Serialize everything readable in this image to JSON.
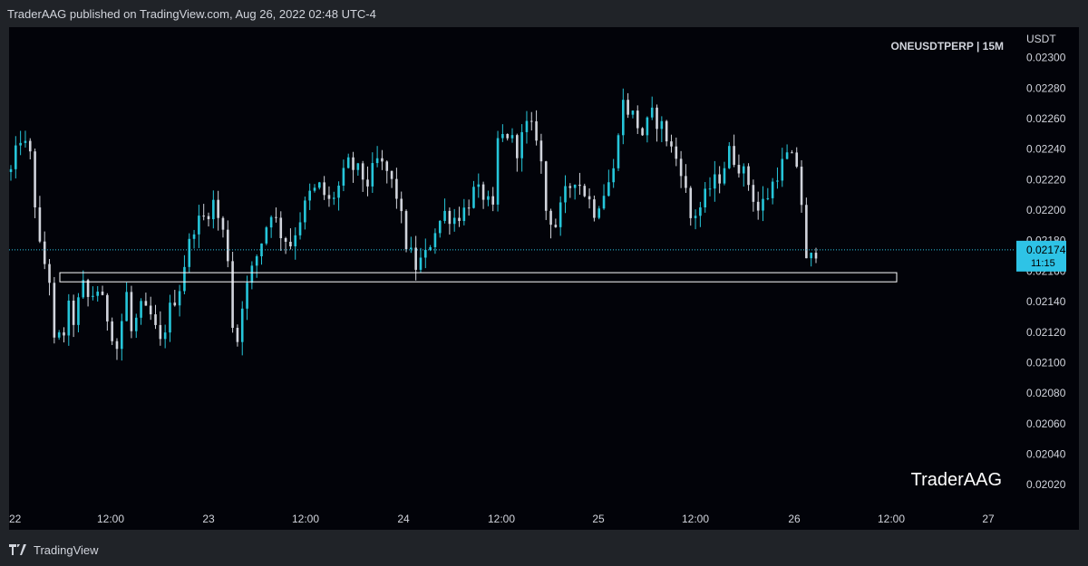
{
  "header": {
    "published": "TraderAAG published on TradingView.com, Aug 26, 2022 02:48 UTC-4"
  },
  "footer": {
    "brand": "TradingView"
  },
  "colors": {
    "background": "#020309",
    "candle": "#d1d4dc",
    "candle_up": "#26c6da",
    "last_price": "#2ec3e6",
    "zone": "#ffffff"
  },
  "chart_data": {
    "type": "candlestick",
    "symbol_label": "ONEUSDTPERP | 15M",
    "currency": "USDT",
    "watermark": "TraderAAG",
    "ylim": [
      0.0201,
      0.0232
    ],
    "y_ticks": [
      "0.02300",
      "0.02280",
      "0.02260",
      "0.02240",
      "0.02220",
      "0.02200",
      "0.02180",
      "0.02160",
      "0.02140",
      "0.02120",
      "0.02100",
      "0.02080",
      "0.02060",
      "0.02040",
      "0.02020"
    ],
    "x_ticks": [
      "22",
      "12:00",
      "23",
      "12:00",
      "24",
      "12:00",
      "25",
      "12:00",
      "26",
      "12:00",
      "27"
    ],
    "last_price": {
      "value": "0.02174",
      "countdown": "11:15"
    },
    "zone": {
      "y_low": 0.02153,
      "y_high": 0.02159,
      "x_start": "Aug 22 ~08:00",
      "x_end": "Aug 26 ~12:00"
    },
    "price_path": [
      [
        0,
        0.02225
      ],
      [
        2,
        0.02248
      ],
      [
        4,
        0.02235
      ],
      [
        6,
        0.02175
      ],
      [
        8,
        0.02155
      ],
      [
        9,
        0.02112
      ],
      [
        11,
        0.0212
      ],
      [
        12,
        0.02135
      ],
      [
        13,
        0.02128
      ],
      [
        15,
        0.0215
      ],
      [
        16,
        0.02142
      ],
      [
        18,
        0.02148
      ],
      [
        20,
        0.0213
      ],
      [
        22,
        0.0211
      ],
      [
        24,
        0.02145
      ],
      [
        25,
        0.0212
      ],
      [
        27,
        0.02135
      ],
      [
        29,
        0.0213
      ],
      [
        31,
        0.02112
      ],
      [
        33,
        0.02135
      ],
      [
        35,
        0.0215
      ],
      [
        36,
        0.02165
      ],
      [
        38,
        0.0219
      ],
      [
        40,
        0.02195
      ],
      [
        42,
        0.02205
      ],
      [
        44,
        0.02185
      ],
      [
        45,
        0.0217
      ],
      [
        46,
        0.02125
      ],
      [
        47,
        0.02115
      ],
      [
        48,
        0.0214
      ],
      [
        50,
        0.0216
      ],
      [
        52,
        0.0218
      ],
      [
        54,
        0.022
      ],
      [
        56,
        0.02185
      ],
      [
        58,
        0.02178
      ],
      [
        60,
        0.02195
      ],
      [
        62,
        0.0221
      ],
      [
        64,
        0.02215
      ],
      [
        66,
        0.02205
      ],
      [
        68,
        0.02215
      ],
      [
        70,
        0.0223
      ],
      [
        72,
        0.02225
      ],
      [
        74,
        0.02218
      ],
      [
        76,
        0.02232
      ],
      [
        78,
        0.02225
      ],
      [
        80,
        0.0221
      ],
      [
        82,
        0.02178
      ],
      [
        84,
        0.02163
      ],
      [
        86,
        0.0217
      ],
      [
        88,
        0.02188
      ],
      [
        90,
        0.02198
      ],
      [
        92,
        0.02195
      ],
      [
        94,
        0.022
      ],
      [
        96,
        0.02212
      ],
      [
        98,
        0.0221
      ],
      [
        100,
        0.02198
      ],
      [
        101,
        0.02245
      ],
      [
        103,
        0.0225
      ],
      [
        105,
        0.0224
      ],
      [
        107,
        0.02255
      ],
      [
        109,
        0.0225
      ],
      [
        110,
        0.0223
      ],
      [
        111,
        0.022
      ],
      [
        113,
        0.0219
      ],
      [
        115,
        0.0221
      ],
      [
        117,
        0.02222
      ],
      [
        119,
        0.02212
      ],
      [
        121,
        0.022
      ],
      [
        123,
        0.02212
      ],
      [
        125,
        0.02225
      ],
      [
        126,
        0.02255
      ],
      [
        127,
        0.0227
      ],
      [
        129,
        0.02262
      ],
      [
        131,
        0.0225
      ],
      [
        133,
        0.02262
      ],
      [
        135,
        0.02255
      ],
      [
        137,
        0.0224
      ],
      [
        139,
        0.02228
      ],
      [
        141,
        0.02195
      ],
      [
        143,
        0.02202
      ],
      [
        145,
        0.02215
      ],
      [
        147,
        0.02222
      ],
      [
        149,
        0.02238
      ],
      [
        151,
        0.0223
      ],
      [
        153,
        0.02218
      ],
      [
        155,
        0.022
      ],
      [
        157,
        0.0221
      ],
      [
        159,
        0.02225
      ],
      [
        161,
        0.02235
      ],
      [
        163,
        0.0223
      ],
      [
        164,
        0.02205
      ],
      [
        165,
        0.02165
      ],
      [
        166,
        0.02168
      ],
      [
        167,
        0.02174
      ]
    ]
  }
}
